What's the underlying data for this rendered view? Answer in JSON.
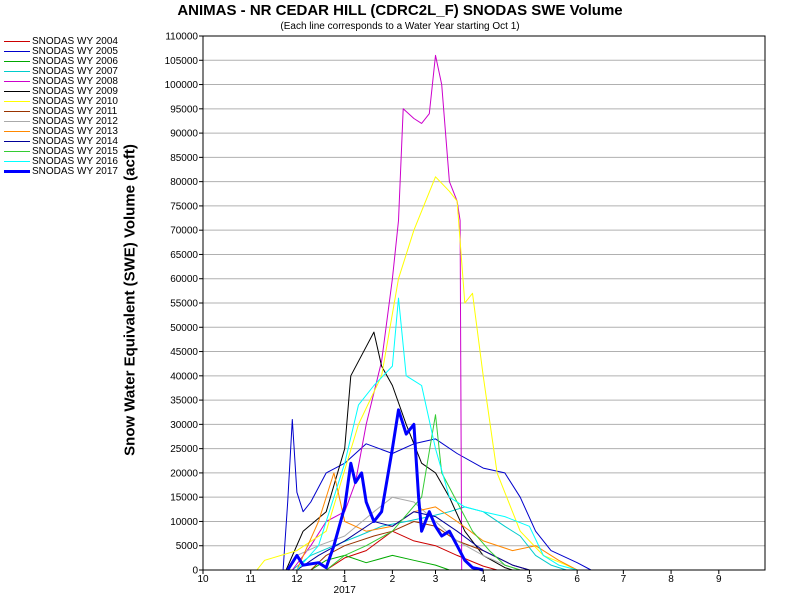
{
  "chart_data": {
    "type": "line",
    "title": "ANIMAS - NR CEDAR HILL (CDRC2L_F) SNODAS SWE Volume",
    "subtitle": "(Each line corresponds to a Water Year starting Oct 1)",
    "ylabel": "Snow Water Equivalent (SWE) Volume (acft)",
    "xlabel": "",
    "x_tick_labels": [
      "10",
      "11",
      "12",
      "1",
      "2",
      "3",
      "4",
      "5",
      "6",
      "7",
      "8",
      "9"
    ],
    "x_year_label": "2017",
    "xlim": [
      "2016-10-01",
      "2017-10-01"
    ],
    "ylim": [
      0,
      110000
    ],
    "y_ticks": [
      0,
      5000,
      10000,
      15000,
      20000,
      25000,
      30000,
      35000,
      40000,
      45000,
      50000,
      55000,
      60000,
      65000,
      70000,
      75000,
      80000,
      85000,
      90000,
      95000,
      100000,
      105000,
      110000
    ],
    "grid": "horizontal",
    "legend_position": "left",
    "series": [
      {
        "name": "SNODAS WY 2004",
        "color": "#cc0000",
        "points": [
          [
            "2016-12-20",
            0
          ],
          [
            "2017-01-01",
            2500
          ],
          [
            "2017-01-15",
            4000
          ],
          [
            "2017-02-01",
            8000
          ],
          [
            "2017-02-15",
            6000
          ],
          [
            "2017-03-01",
            5000
          ],
          [
            "2017-03-15",
            3000
          ],
          [
            "2017-04-01",
            800
          ],
          [
            "2017-04-10",
            0
          ]
        ]
      },
      {
        "name": "SNODAS WY 2005",
        "color": "#0000cc",
        "points": [
          [
            "2016-11-22",
            0
          ],
          [
            "2016-11-25",
            14000
          ],
          [
            "2016-11-28",
            31000
          ],
          [
            "2016-12-01",
            16000
          ],
          [
            "2016-12-05",
            12000
          ],
          [
            "2016-12-10",
            14000
          ],
          [
            "2016-12-20",
            20000
          ],
          [
            "2017-01-01",
            22000
          ],
          [
            "2017-01-15",
            26000
          ],
          [
            "2017-02-01",
            24000
          ],
          [
            "2017-02-15",
            26000
          ],
          [
            "2017-03-01",
            27000
          ],
          [
            "2017-03-15",
            24000
          ],
          [
            "2017-04-01",
            21000
          ],
          [
            "2017-04-15",
            20000
          ],
          [
            "2017-04-25",
            15000
          ],
          [
            "2017-05-05",
            8000
          ],
          [
            "2017-05-15",
            4000
          ],
          [
            "2017-06-01",
            1500
          ],
          [
            "2017-06-10",
            0
          ]
        ]
      },
      {
        "name": "SNODAS WY 2006",
        "color": "#00aa00",
        "points": [
          [
            "2016-12-10",
            0
          ],
          [
            "2016-12-20",
            2000
          ],
          [
            "2017-01-01",
            3000
          ],
          [
            "2017-01-15",
            1500
          ],
          [
            "2017-02-01",
            3000
          ],
          [
            "2017-02-15",
            2000
          ],
          [
            "2017-03-01",
            1000
          ],
          [
            "2017-03-10",
            0
          ]
        ]
      },
      {
        "name": "SNODAS WY 2007",
        "color": "#00cccc",
        "points": [
          [
            "2016-11-28",
            0
          ],
          [
            "2016-12-10",
            3000
          ],
          [
            "2016-12-25",
            5000
          ],
          [
            "2017-01-10",
            7000
          ],
          [
            "2017-01-25",
            9000
          ],
          [
            "2017-02-10",
            10000
          ],
          [
            "2017-02-25",
            11000
          ],
          [
            "2017-03-10",
            12000
          ],
          [
            "2017-03-20",
            13000
          ],
          [
            "2017-04-01",
            12000
          ],
          [
            "2017-04-15",
            9000
          ],
          [
            "2017-04-25",
            7000
          ],
          [
            "2017-05-05",
            3000
          ],
          [
            "2017-05-15",
            1000
          ],
          [
            "2017-05-25",
            0
          ]
        ]
      },
      {
        "name": "SNODAS WY 2008",
        "color": "#cc00cc",
        "points": [
          [
            "2016-11-28",
            0
          ],
          [
            "2016-12-10",
            5000
          ],
          [
            "2016-12-20",
            10000
          ],
          [
            "2017-01-01",
            12000
          ],
          [
            "2017-01-08",
            18000
          ],
          [
            "2017-01-15",
            30000
          ],
          [
            "2017-01-25",
            43000
          ],
          [
            "2017-02-01",
            60000
          ],
          [
            "2017-02-05",
            72000
          ],
          [
            "2017-02-08",
            95000
          ],
          [
            "2017-02-15",
            93000
          ],
          [
            "2017-02-20",
            92000
          ],
          [
            "2017-02-25",
            94000
          ],
          [
            "2017-03-01",
            106000
          ],
          [
            "2017-03-05",
            100000
          ],
          [
            "2017-03-10",
            80000
          ],
          [
            "2017-03-15",
            76000
          ],
          [
            "2017-03-17",
            72000
          ],
          [
            "2017-03-18",
            0
          ]
        ]
      },
      {
        "name": "SNODAS WY 2009",
        "color": "#000000",
        "points": [
          [
            "2016-11-24",
            0
          ],
          [
            "2016-12-05",
            8000
          ],
          [
            "2016-12-20",
            12000
          ],
          [
            "2017-01-01",
            25000
          ],
          [
            "2017-01-05",
            40000
          ],
          [
            "2017-01-15",
            46000
          ],
          [
            "2017-01-20",
            49000
          ],
          [
            "2017-01-25",
            42000
          ],
          [
            "2017-02-01",
            38000
          ],
          [
            "2017-02-10",
            30000
          ],
          [
            "2017-02-20",
            22000
          ],
          [
            "2017-03-01",
            20000
          ],
          [
            "2017-03-10",
            15000
          ],
          [
            "2017-03-20",
            8000
          ],
          [
            "2017-04-01",
            3000
          ],
          [
            "2017-04-15",
            500
          ],
          [
            "2017-04-20",
            0
          ]
        ]
      },
      {
        "name": "SNODAS WY 2010",
        "color": "#ffff00",
        "points": [
          [
            "2016-11-05",
            0
          ],
          [
            "2016-11-10",
            2000
          ],
          [
            "2016-12-01",
            4000
          ],
          [
            "2016-12-20",
            8000
          ],
          [
            "2017-01-10",
            30000
          ],
          [
            "2017-01-25",
            40000
          ],
          [
            "2017-02-05",
            60000
          ],
          [
            "2017-02-15",
            70000
          ],
          [
            "2017-03-01",
            81000
          ],
          [
            "2017-03-10",
            78000
          ],
          [
            "2017-03-15",
            76000
          ],
          [
            "2017-03-20",
            55000
          ],
          [
            "2017-03-25",
            57000
          ],
          [
            "2017-04-01",
            40000
          ],
          [
            "2017-04-10",
            20000
          ],
          [
            "2017-04-25",
            8000
          ],
          [
            "2017-05-10",
            3000
          ],
          [
            "2017-05-25",
            1000
          ],
          [
            "2017-06-01",
            0
          ]
        ]
      },
      {
        "name": "SNODAS WY 2011",
        "color": "#993300",
        "points": [
          [
            "2016-12-10",
            0
          ],
          [
            "2016-12-20",
            3000
          ],
          [
            "2017-01-01",
            5000
          ],
          [
            "2017-01-20",
            7000
          ],
          [
            "2017-02-01",
            8000
          ],
          [
            "2017-02-15",
            10000
          ],
          [
            "2017-03-01",
            9000
          ],
          [
            "2017-03-15",
            6000
          ],
          [
            "2017-04-01",
            4000
          ],
          [
            "2017-04-20",
            1000
          ],
          [
            "2017-05-01",
            0
          ]
        ]
      },
      {
        "name": "SNODAS WY 2012",
        "color": "#aaaaaa",
        "points": [
          [
            "2016-11-25",
            0
          ],
          [
            "2016-12-01",
            3000
          ],
          [
            "2016-12-15",
            5000
          ],
          [
            "2017-01-01",
            7000
          ],
          [
            "2017-01-20",
            12000
          ],
          [
            "2017-02-01",
            15000
          ],
          [
            "2017-02-15",
            14000
          ],
          [
            "2017-03-01",
            10000
          ],
          [
            "2017-03-15",
            6000
          ],
          [
            "2017-04-01",
            3000
          ],
          [
            "2017-04-15",
            1000
          ],
          [
            "2017-04-25",
            0
          ]
        ]
      },
      {
        "name": "SNODAS WY 2013",
        "color": "#ff8800",
        "points": [
          [
            "2016-12-01",
            0
          ],
          [
            "2016-12-15",
            10000
          ],
          [
            "2016-12-25",
            20000
          ],
          [
            "2017-01-01",
            10000
          ],
          [
            "2017-01-15",
            8000
          ],
          [
            "2017-02-01",
            9000
          ],
          [
            "2017-02-15",
            12000
          ],
          [
            "2017-03-01",
            13000
          ],
          [
            "2017-03-15",
            10000
          ],
          [
            "2017-04-01",
            6000
          ],
          [
            "2017-04-20",
            4000
          ],
          [
            "2017-05-05",
            5000
          ],
          [
            "2017-05-20",
            2000
          ],
          [
            "2017-06-01",
            0
          ]
        ]
      },
      {
        "name": "SNODAS WY 2014",
        "color": "#000099",
        "points": [
          [
            "2016-12-01",
            0
          ],
          [
            "2016-12-15",
            3000
          ],
          [
            "2017-01-01",
            6000
          ],
          [
            "2017-01-20",
            10000
          ],
          [
            "2017-02-01",
            9000
          ],
          [
            "2017-02-15",
            12000
          ],
          [
            "2017-03-01",
            11000
          ],
          [
            "2017-03-15",
            8000
          ],
          [
            "2017-04-01",
            4000
          ],
          [
            "2017-04-20",
            1000
          ],
          [
            "2017-05-01",
            0
          ]
        ]
      },
      {
        "name": "SNODAS WY 2015",
        "color": "#33cc33",
        "points": [
          [
            "2016-12-20",
            0
          ],
          [
            "2017-01-01",
            3000
          ],
          [
            "2017-01-15",
            5000
          ],
          [
            "2017-02-01",
            8000
          ],
          [
            "2017-02-20",
            15000
          ],
          [
            "2017-03-01",
            32000
          ],
          [
            "2017-03-05",
            20000
          ],
          [
            "2017-03-15",
            14000
          ],
          [
            "2017-03-25",
            8000
          ],
          [
            "2017-04-05",
            4000
          ],
          [
            "2017-04-15",
            1000
          ],
          [
            "2017-04-25",
            0
          ]
        ]
      },
      {
        "name": "SNODAS WY 2016",
        "color": "#00ffff",
        "points": [
          [
            "2016-12-01",
            0
          ],
          [
            "2016-12-15",
            5000
          ],
          [
            "2016-12-25",
            15000
          ],
          [
            "2017-01-01",
            22000
          ],
          [
            "2017-01-10",
            34000
          ],
          [
            "2017-01-20",
            38000
          ],
          [
            "2017-02-01",
            42000
          ],
          [
            "2017-02-05",
            56000
          ],
          [
            "2017-02-10",
            40000
          ],
          [
            "2017-02-20",
            38000
          ],
          [
            "2017-03-01",
            25000
          ],
          [
            "2017-03-10",
            15000
          ],
          [
            "2017-03-20",
            13000
          ],
          [
            "2017-04-01",
            12000
          ],
          [
            "2017-04-15",
            11000
          ],
          [
            "2017-05-01",
            9000
          ],
          [
            "2017-05-10",
            3000
          ],
          [
            "2017-05-20",
            1000
          ],
          [
            "2017-06-01",
            0
          ]
        ]
      },
      {
        "name": "SNODAS WY 2017",
        "color": "#0000ff",
        "bold": true,
        "points": [
          [
            "2016-11-25",
            0
          ],
          [
            "2016-12-01",
            3000
          ],
          [
            "2016-12-05",
            1000
          ],
          [
            "2016-12-15",
            1500
          ],
          [
            "2016-12-20",
            500
          ],
          [
            "2016-12-25",
            5000
          ],
          [
            "2017-01-01",
            13000
          ],
          [
            "2017-01-05",
            22000
          ],
          [
            "2017-01-08",
            18000
          ],
          [
            "2017-01-12",
            20000
          ],
          [
            "2017-01-15",
            14000
          ],
          [
            "2017-01-20",
            10000
          ],
          [
            "2017-01-25",
            12000
          ],
          [
            "2017-02-01",
            25000
          ],
          [
            "2017-02-05",
            33000
          ],
          [
            "2017-02-10",
            28000
          ],
          [
            "2017-02-15",
            30000
          ],
          [
            "2017-02-18",
            15000
          ],
          [
            "2017-02-20",
            8000
          ],
          [
            "2017-02-25",
            12000
          ],
          [
            "2017-03-01",
            9000
          ],
          [
            "2017-03-05",
            7000
          ],
          [
            "2017-03-10",
            8000
          ],
          [
            "2017-03-15",
            5000
          ],
          [
            "2017-03-20",
            2000
          ],
          [
            "2017-03-25",
            500
          ],
          [
            "2017-04-01",
            0
          ]
        ]
      }
    ]
  }
}
